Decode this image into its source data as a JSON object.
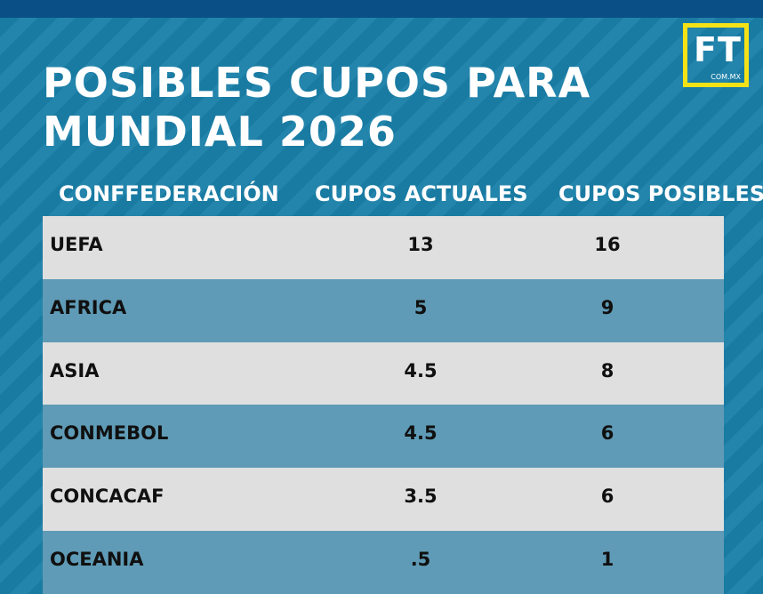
{
  "title": "POSIBLES CUPOS PARA MUNDIAL 2026",
  "logo": {
    "text": "FT",
    "subtext": "COM.MX"
  },
  "colors": {
    "background": "#1a7fa8",
    "top_bar": "#0a4f86",
    "logo_border": "#f4e217",
    "row_light": "#dfdfdf",
    "row_dark": "#5f9bb6"
  },
  "table": {
    "headers": [
      "CONFFEDERACIÓN",
      "CUPOS ACTUALES",
      "CUPOS POSIBLES"
    ],
    "rows": [
      {
        "confederation": "UEFA",
        "current": "13",
        "possible": "16"
      },
      {
        "confederation": "AFRICA",
        "current": "5",
        "possible": "9"
      },
      {
        "confederation": "ASIA",
        "current": "4.5",
        "possible": "8"
      },
      {
        "confederation": "CONMEBOL",
        "current": "4.5",
        "possible": "6"
      },
      {
        "confederation": "CONCACAF",
        "current": "3.5",
        "possible": "6"
      },
      {
        "confederation": "OCEANIA",
        "current": ".5",
        "possible": "1"
      }
    ]
  }
}
